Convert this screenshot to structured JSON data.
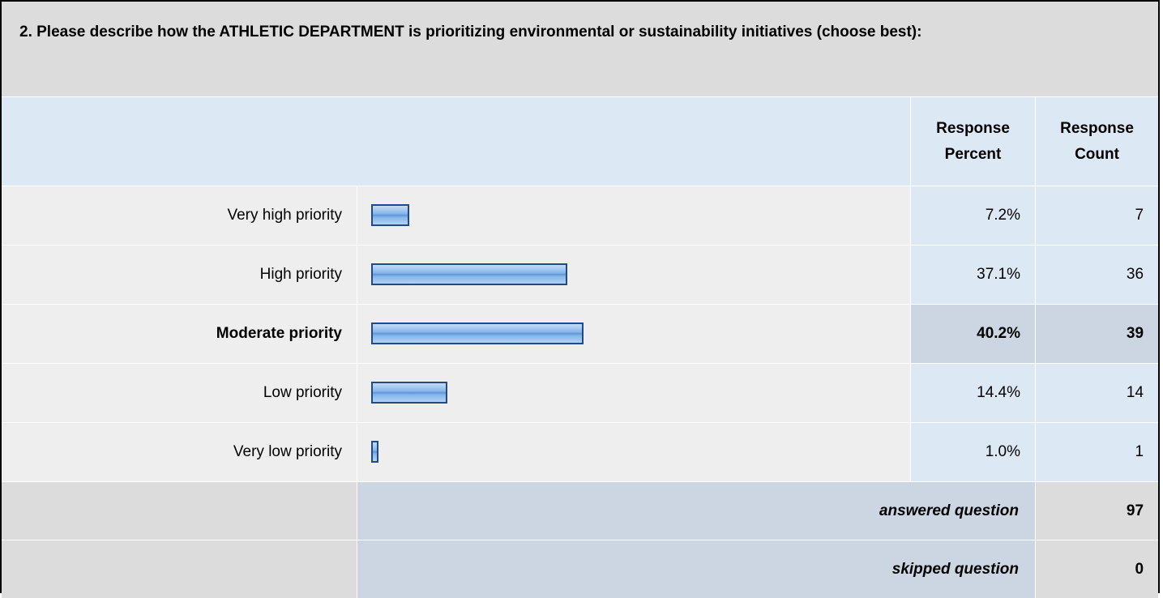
{
  "question": {
    "title": "2. Please describe how the ATHLETIC DEPARTMENT is prioritizing environmental or sustainability initiatives (choose best):"
  },
  "headers": {
    "percent_line1": "Response",
    "percent_line2": "Percent",
    "count_line1": "Response",
    "count_line2": "Count"
  },
  "chart_data": {
    "type": "bar",
    "categories": [
      "Very high priority",
      "High priority",
      "Moderate priority",
      "Low priority",
      "Very low priority"
    ],
    "values": [
      7.2,
      37.1,
      40.2,
      14.4,
      1.0
    ],
    "percent_labels": [
      "7.2%",
      "37.1%",
      "40.2%",
      "14.4%",
      "1.0%"
    ],
    "counts": [
      "7",
      "36",
      "39",
      "14",
      "1"
    ],
    "highlighted_category": "Moderate priority",
    "bar_color": "#84b3e8",
    "bar_border_color": "#244a86"
  },
  "footer": {
    "answered_label": "answered question",
    "answered_value": "97",
    "skipped_label": "skipped question",
    "skipped_value": "0"
  }
}
